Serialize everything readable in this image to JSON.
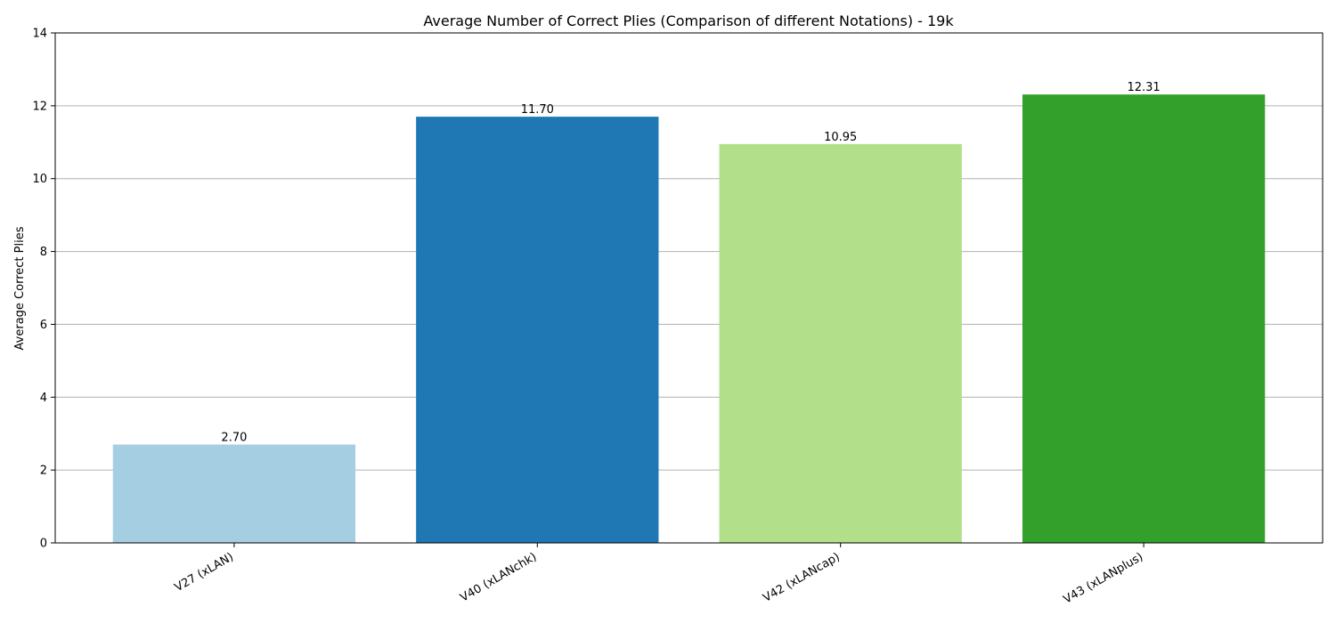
{
  "chart_data": {
    "type": "bar",
    "title": "Average Number of Correct Plies (Comparison of different Notations) - 19k",
    "xlabel": "",
    "ylabel": "Average Correct Plies",
    "categories": [
      "V27 (xLAN)",
      "V40 (xLANchk)",
      "V42 (xLANcap)",
      "V43 (xLANplus)"
    ],
    "values": [
      2.7,
      11.7,
      10.95,
      12.31
    ],
    "data_labels": [
      "2.70",
      "11.70",
      "10.95",
      "12.31"
    ],
    "colors": [
      "#a6cee3",
      "#1f78b4",
      "#b2df8a",
      "#33a02c"
    ],
    "ylim": [
      0,
      14
    ],
    "yticks": [
      0,
      2,
      4,
      6,
      8,
      10,
      12,
      14
    ],
    "grid": "y",
    "legend": "none"
  }
}
